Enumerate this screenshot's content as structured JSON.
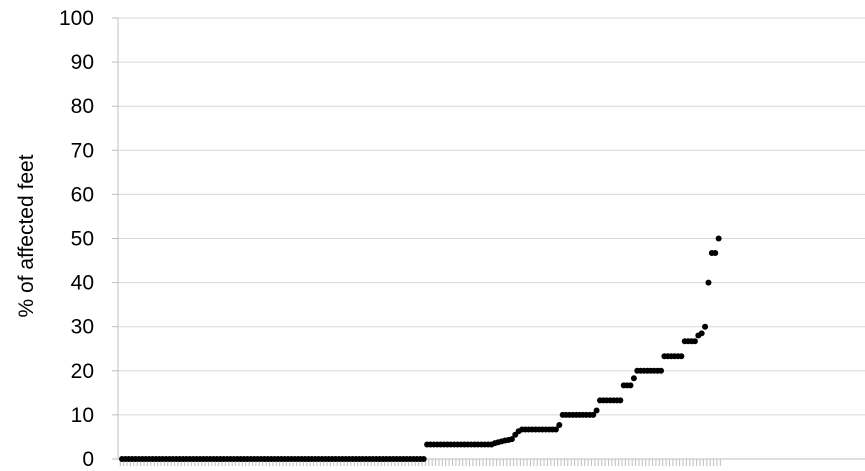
{
  "chart_data": {
    "type": "scatter",
    "title": "",
    "xlabel": "",
    "ylabel": "% of affected feet",
    "ylim": [
      0,
      100
    ],
    "yticks": [
      0,
      10,
      20,
      30,
      40,
      50,
      60,
      70,
      80,
      90,
      100
    ],
    "grid": true,
    "legend": "none",
    "colors": {
      "marker": "#000000",
      "grid": "#d9d9d9",
      "axis": "#bfbfbf"
    },
    "x_label": "",
    "series": [
      {
        "values": [
          0,
          0,
          0,
          0,
          0,
          0,
          0,
          0,
          0,
          0,
          0,
          0,
          0,
          0,
          0,
          0,
          0,
          0,
          0,
          0,
          0,
          0,
          0,
          0,
          0,
          0,
          0,
          0,
          0,
          0,
          0,
          0,
          0,
          0,
          0,
          0,
          0,
          0,
          0,
          0,
          0,
          0,
          0,
          0,
          0,
          0,
          0,
          0,
          0,
          0,
          0,
          0,
          0,
          0,
          0,
          0,
          0,
          0,
          0,
          0,
          0,
          0,
          0,
          0,
          0,
          0,
          0,
          0,
          0,
          0,
          0,
          0,
          0,
          0,
          0,
          0,
          0,
          0,
          0,
          0,
          0,
          0,
          0,
          0,
          0,
          0,
          0,
          0,
          0,
          0,
          3.3,
          3.3,
          3.3,
          3.3,
          3.3,
          3.3,
          3.3,
          3.3,
          3.3,
          3.3,
          3.3,
          3.3,
          3.3,
          3.3,
          3.3,
          3.3,
          3.3,
          3.3,
          3.3,
          3.3,
          3.6,
          3.8,
          4.0,
          4.2,
          4.3,
          4.5,
          5.5,
          6.3,
          6.7,
          6.7,
          6.7,
          6.7,
          6.7,
          6.7,
          6.7,
          6.7,
          6.7,
          6.7,
          6.7,
          7.7,
          10,
          10,
          10,
          10,
          10,
          10,
          10,
          10,
          10,
          10,
          11,
          13.3,
          13.3,
          13.3,
          13.3,
          13.3,
          13.3,
          13.3,
          16.7,
          16.7,
          16.7,
          18.3,
          20,
          20,
          20,
          20,
          20,
          20,
          20,
          20,
          23.3,
          23.3,
          23.3,
          23.3,
          23.3,
          23.3,
          26.7,
          26.7,
          26.7,
          26.7,
          28,
          28.5,
          30,
          40,
          46.7,
          46.7,
          50
        ]
      }
    ]
  }
}
